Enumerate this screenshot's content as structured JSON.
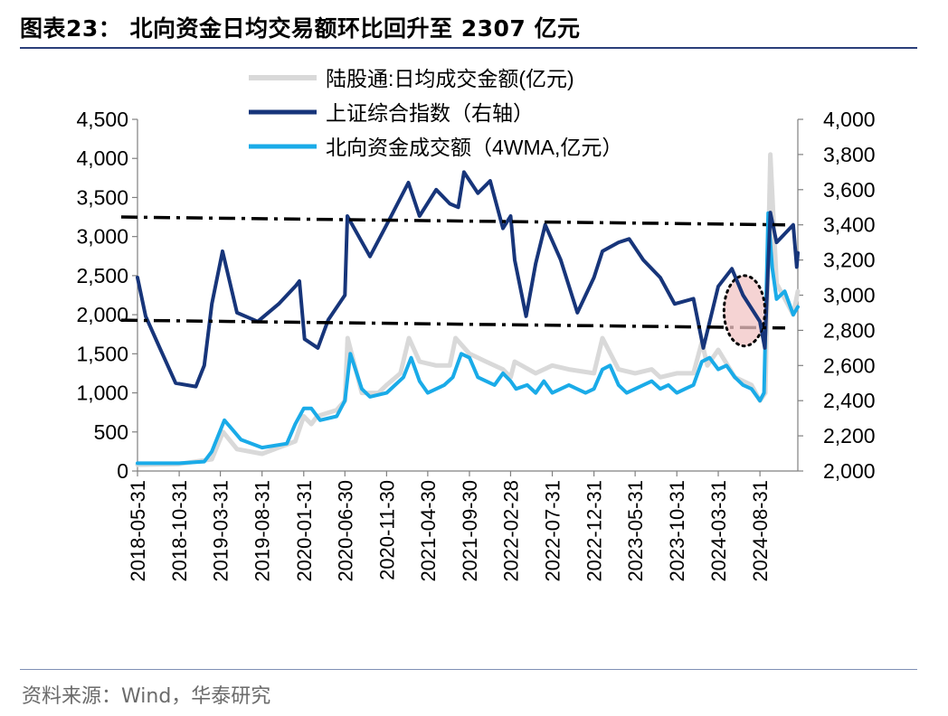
{
  "header": {
    "title": "图表23：  北向资金日均交易额环比回升至 2307 亿元"
  },
  "footer": {
    "source": "资料来源：Wind，华泰研究"
  },
  "colors": {
    "daily_turnover": "#d9d9d9",
    "sse_index": "#17357a",
    "northbound_4wma": "#1aabe8",
    "trend_lines": "#000000",
    "highlight_circle_fill": "#f2c4c4",
    "rule": "#2b3f7a"
  },
  "chart_data": {
    "type": "line",
    "x_tick_labels": [
      "2018-05-31",
      "2018-10-31",
      "2019-03-31",
      "2019-08-31",
      "2020-01-31",
      "2020-06-30",
      "2020-11-30",
      "2021-04-30",
      "2021-09-30",
      "2022-02-28",
      "2022-07-31",
      "2022-12-31",
      "2023-05-31",
      "2023-10-31",
      "2024-03-31",
      "2024-08-31"
    ],
    "x_range": [
      "2018-05-31",
      "2025-01-17"
    ],
    "y_left": {
      "min": 0,
      "max": 4500,
      "step": 500,
      "tick_labels": [
        "0",
        "500",
        "1,000",
        "1,500",
        "2,000",
        "2,500",
        "3,000",
        "3,500",
        "4,000",
        "4,500"
      ]
    },
    "y_right": {
      "min": 2000,
      "max": 4000,
      "step": 200,
      "tick_labels": [
        "2,000",
        "2,200",
        "2,400",
        "2,600",
        "2,800",
        "3,000",
        "3,200",
        "3,400",
        "3,600",
        "3,800",
        "4,000"
      ]
    },
    "legend": [
      "陆股通:日均成交金额(亿元)",
      "上证综合指数（右轴）",
      "北向资金成交额（4WMA,亿元）"
    ],
    "legend_position": "top-center",
    "grid": false,
    "series": [
      {
        "name": "陆股通:日均成交金额(亿元)",
        "axis": "left",
        "x": [
          "2018-05-31",
          "2018-10-31",
          "2019-02-28",
          "2019-04-10",
          "2019-05-31",
          "2019-08-31",
          "2019-12-31",
          "2020-01-31",
          "2020-02-28",
          "2020-03-20",
          "2020-05-31",
          "2020-06-30",
          "2020-07-10",
          "2020-08-31",
          "2020-10-31",
          "2020-11-30",
          "2021-01-20",
          "2021-02-20",
          "2021-03-31",
          "2021-05-31",
          "2021-07-20",
          "2021-08-10",
          "2021-09-30",
          "2021-11-30",
          "2022-01-31",
          "2022-02-28",
          "2022-03-15",
          "2022-05-31",
          "2022-07-31",
          "2022-09-30",
          "2022-12-31",
          "2023-01-31",
          "2023-03-31",
          "2023-05-31",
          "2023-07-31",
          "2023-08-31",
          "2023-10-31",
          "2023-12-31",
          "2024-01-31",
          "2024-02-20",
          "2024-03-31",
          "2024-05-31",
          "2024-07-31",
          "2024-08-31",
          "2024-09-20",
          "2024-10-08",
          "2024-10-31",
          "2024-12-31",
          "2025-01-17"
        ],
        "y": [
          80,
          90,
          150,
          500,
          280,
          220,
          380,
          700,
          600,
          700,
          780,
          900,
          1700,
          1000,
          1000,
          1100,
          1250,
          1700,
          1400,
          1350,
          1350,
          1700,
          1500,
          1400,
          1300,
          1200,
          1400,
          1250,
          1350,
          1300,
          1250,
          1700,
          1300,
          1250,
          1300,
          1200,
          1250,
          1250,
          1650,
          1350,
          1550,
          1200,
          1100,
          900,
          1000,
          4050,
          2400,
          2000,
          2300
        ]
      },
      {
        "name": "上证综合指数（右轴）",
        "axis": "right",
        "x": [
          "2018-05-31",
          "2018-06-30",
          "2018-08-15",
          "2018-10-18",
          "2018-12-31",
          "2019-01-31",
          "2019-02-28",
          "2019-04-08",
          "2019-05-31",
          "2019-08-15",
          "2019-10-31",
          "2019-12-31",
          "2020-01-15",
          "2020-02-03",
          "2020-03-23",
          "2020-04-30",
          "2020-06-30",
          "2020-07-09",
          "2020-09-30",
          "2020-11-30",
          "2021-02-18",
          "2021-03-31",
          "2021-05-31",
          "2021-07-20",
          "2021-08-20",
          "2021-09-10",
          "2021-10-31",
          "2021-12-15",
          "2022-01-31",
          "2022-02-28",
          "2022-03-15",
          "2022-04-26",
          "2022-05-31",
          "2022-07-05",
          "2022-08-31",
          "2022-10-31",
          "2022-12-31",
          "2023-01-31",
          "2023-03-31",
          "2023-05-09",
          "2023-06-30",
          "2023-08-31",
          "2023-10-23",
          "2023-12-31",
          "2024-02-05",
          "2024-03-31",
          "2024-05-20",
          "2024-06-30",
          "2024-08-31",
          "2024-09-18",
          "2024-10-08",
          "2024-10-31",
          "2024-12-31",
          "2025-01-13",
          "2025-01-17"
        ],
        "y": [
          3100,
          2880,
          2720,
          2500,
          2480,
          2600,
          2950,
          3250,
          2900,
          2850,
          2950,
          3050,
          3080,
          2750,
          2700,
          2860,
          3000,
          3450,
          3220,
          3400,
          3640,
          3450,
          3600,
          3520,
          3500,
          3700,
          3580,
          3650,
          3380,
          3450,
          3200,
          2880,
          3180,
          3400,
          3200,
          2900,
          3100,
          3250,
          3300,
          3320,
          3200,
          3100,
          2950,
          2980,
          2700,
          3050,
          3150,
          3000,
          2850,
          2700,
          3470,
          3300,
          3400,
          3160,
          3240
        ]
      },
      {
        "name": "北向资金成交额（4WMA,亿元）",
        "axis": "left",
        "x": [
          "2018-05-31",
          "2018-10-31",
          "2019-01-31",
          "2019-02-28",
          "2019-04-15",
          "2019-06-15",
          "2019-08-31",
          "2019-11-30",
          "2019-12-31",
          "2020-01-31",
          "2020-02-28",
          "2020-03-31",
          "2020-05-31",
          "2020-06-30",
          "2020-07-20",
          "2020-08-31",
          "2020-09-30",
          "2020-11-30",
          "2021-01-31",
          "2021-02-28",
          "2021-03-31",
          "2021-04-30",
          "2021-06-30",
          "2021-07-31",
          "2021-08-31",
          "2021-09-30",
          "2021-10-31",
          "2021-11-30",
          "2021-12-31",
          "2022-01-31",
          "2022-02-28",
          "2022-03-20",
          "2022-04-30",
          "2022-05-31",
          "2022-06-30",
          "2022-07-31",
          "2022-09-30",
          "2022-11-30",
          "2022-12-31",
          "2023-01-31",
          "2023-02-28",
          "2023-03-31",
          "2023-04-30",
          "2023-05-31",
          "2023-07-31",
          "2023-08-31",
          "2023-09-30",
          "2023-10-31",
          "2023-11-30",
          "2023-12-31",
          "2024-01-31",
          "2024-02-28",
          "2024-03-31",
          "2024-04-30",
          "2024-05-31",
          "2024-06-30",
          "2024-07-31",
          "2024-08-31",
          "2024-09-15",
          "2024-09-30",
          "2024-10-15",
          "2024-10-31",
          "2024-11-30",
          "2024-12-31",
          "2025-01-17"
        ],
        "y": [
          100,
          100,
          120,
          250,
          650,
          400,
          300,
          350,
          600,
          800,
          800,
          650,
          700,
          900,
          1500,
          1050,
          950,
          1000,
          1200,
          1450,
          1150,
          1000,
          1100,
          1200,
          1500,
          1450,
          1200,
          1150,
          1100,
          1250,
          1150,
          1050,
          1100,
          1000,
          1150,
          1000,
          1100,
          1000,
          1050,
          1300,
          1350,
          1100,
          1000,
          1050,
          1150,
          1050,
          1100,
          1000,
          1050,
          1100,
          1400,
          1450,
          1300,
          1350,
          1200,
          1100,
          1050,
          900,
          1000,
          3300,
          2600,
          2200,
          2300,
          2000,
          2100
        ]
      }
    ],
    "trend_lines": [
      {
        "axis": "left",
        "from": [
          "2018-05-31",
          3250
        ],
        "to": [
          "2025-01-17",
          3150
        ]
      },
      {
        "axis": "left",
        "from": [
          "2018-05-31",
          1930
        ],
        "to": [
          "2025-01-17",
          1830
        ]
      }
    ],
    "highlight": {
      "type": "ellipse",
      "center": [
        "2024-07-05",
        2050
      ],
      "rx_days": 75,
      "ry": 450
    }
  }
}
